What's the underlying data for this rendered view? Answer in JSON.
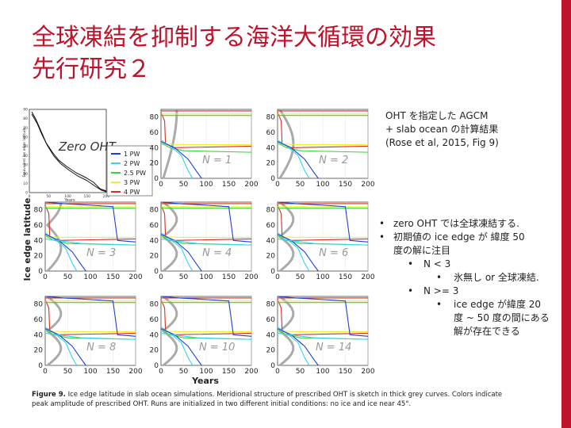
{
  "slide": {
    "title_line1": "全球凍結を抑制する海洋大循環の効果",
    "title_line2": "先行研究２",
    "accent_color": "#c0122a"
  },
  "note": {
    "line1": "OHT を指定した AGCM",
    "line2": "+ slab ocean の計算結果",
    "line3": "(Rose et al, 2015, Fig 9)"
  },
  "bullets": [
    {
      "level": 1,
      "lines": [
        "zero OHT では全球凍結する."
      ]
    },
    {
      "level": 1,
      "lines": [
        "初期値の ice edge が 緯度 50",
        "度の解に注目"
      ]
    },
    {
      "level": 2,
      "lines": [
        "N < 3"
      ]
    },
    {
      "level": 3,
      "lines": [
        "氷無し or 全球凍結."
      ]
    },
    {
      "level": 2,
      "lines": [
        "N >= 3"
      ]
    },
    {
      "level": 3,
      "lines": [
        "ice edge が緯度 20",
        "度 ~ 50 度の間にある",
        "解が存在できる"
      ]
    }
  ],
  "figure": {
    "caption_label": "Figure 9.",
    "caption_text": "Ice edge latitude in slab ocean simulations. Meridional structure of prescribed OHT is sketch in thick grey curves. Colors indicate peak amplitude of prescribed OHT. Runs are initialized in two different initial conditions: no ice and ice near 45°.",
    "ylabel": "Ice edge latitude",
    "xlabel": "Years",
    "zero_panel": {
      "label": "Zero OHT",
      "ylabel": "Equivalent ice edge latitude",
      "xlabel": "Years",
      "yticks": [
        "0",
        "10",
        "20",
        "30",
        "40",
        "50",
        "60",
        "70",
        "80",
        "90"
      ],
      "xticks": [
        "0",
        "50",
        "100",
        "150",
        "200"
      ]
    },
    "legend": [
      {
        "label": "1 PW",
        "color": "#1f3fd6"
      },
      {
        "label": "2 PW",
        "color": "#33d6ee"
      },
      {
        "label": "2.5 PW",
        "color": "#35d635"
      },
      {
        "label": "3 PW",
        "color": "#eeee33"
      },
      {
        "label": "4 PW",
        "color": "#d62f1f"
      }
    ],
    "yticks": [
      "0",
      "20",
      "40",
      "60",
      "80"
    ],
    "xticks": [
      "0",
      "50",
      "100",
      "150",
      "200"
    ],
    "panels": [
      {
        "label": "N = 1"
      },
      {
        "label": "N = 2"
      },
      {
        "label": "N = 3"
      },
      {
        "label": "N = 4"
      },
      {
        "label": "N = 6"
      },
      {
        "label": "N = 8"
      },
      {
        "label": "N = 10"
      },
      {
        "label": "N = 14"
      }
    ]
  }
}
